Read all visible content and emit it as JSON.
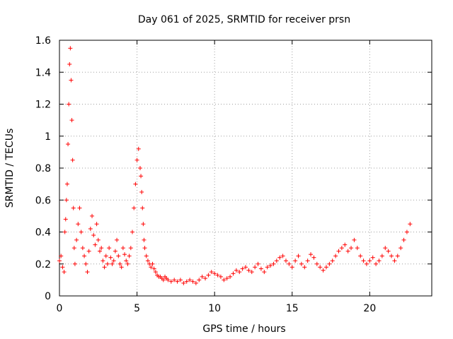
{
  "chart_data": {
    "type": "scatter",
    "title": "Day 061 of 2025, SRMTID for receiver prsn",
    "xlabel": "GPS time / hours",
    "ylabel": "SRMTID / TECUs",
    "xlim": [
      0,
      24
    ],
    "ylim": [
      0,
      1.6
    ],
    "xticks": [
      0,
      5,
      10,
      15,
      20
    ],
    "yticks": [
      0,
      0.2,
      0.4,
      0.6,
      0.8,
      1,
      1.2,
      1.4,
      1.6
    ],
    "xtick_labels": [
      "0",
      "5",
      "10",
      "15",
      "20"
    ],
    "ytick_labels": [
      "0",
      "0.2",
      "0.4",
      "0.6",
      "0.8",
      "1",
      "1.2",
      "1.4",
      "1.6"
    ],
    "grid": true,
    "marker": "+",
    "marker_color": "#ff0000",
    "series": [
      {
        "name": "SRMTID",
        "x": [
          0.0,
          0.1,
          0.2,
          0.3,
          0.35,
          0.4,
          0.45,
          0.5,
          0.55,
          0.6,
          0.65,
          0.7,
          0.75,
          0.8,
          0.85,
          0.9,
          0.95,
          1.0,
          1.1,
          1.2,
          1.3,
          1.4,
          1.5,
          1.6,
          1.7,
          1.8,
          1.9,
          2.0,
          2.1,
          2.2,
          2.3,
          2.4,
          2.5,
          2.6,
          2.7,
          2.8,
          2.9,
          3.0,
          3.1,
          3.2,
          3.3,
          3.4,
          3.5,
          3.6,
          3.7,
          3.8,
          3.9,
          4.0,
          4.1,
          4.2,
          4.3,
          4.4,
          4.5,
          4.6,
          4.7,
          4.8,
          4.9,
          5.0,
          5.1,
          5.2,
          5.25,
          5.3,
          5.35,
          5.4,
          5.45,
          5.5,
          5.6,
          5.7,
          5.8,
          5.9,
          6.0,
          6.1,
          6.2,
          6.3,
          6.4,
          6.5,
          6.6,
          6.7,
          6.8,
          6.9,
          7.0,
          7.2,
          7.4,
          7.6,
          7.8,
          8.0,
          8.2,
          8.4,
          8.6,
          8.8,
          9.0,
          9.2,
          9.4,
          9.6,
          9.8,
          10.0,
          10.2,
          10.4,
          10.6,
          10.8,
          11.0,
          11.2,
          11.4,
          11.6,
          11.8,
          12.0,
          12.2,
          12.4,
          12.6,
          12.8,
          13.0,
          13.2,
          13.4,
          13.6,
          13.8,
          14.0,
          14.2,
          14.4,
          14.6,
          14.8,
          15.0,
          15.2,
          15.4,
          15.6,
          15.8,
          16.0,
          16.2,
          16.4,
          16.6,
          16.8,
          17.0,
          17.2,
          17.4,
          17.6,
          17.8,
          18.0,
          18.2,
          18.4,
          18.6,
          18.8,
          19.0,
          19.2,
          19.4,
          19.6,
          19.8,
          20.0,
          20.2,
          20.4,
          20.6,
          20.8,
          21.0,
          21.2,
          21.4,
          21.6,
          21.8,
          22.0,
          22.2,
          22.4,
          22.6
        ],
        "y": [
          0.22,
          0.25,
          0.18,
          0.15,
          0.4,
          0.48,
          0.6,
          0.7,
          0.95,
          1.2,
          1.45,
          1.55,
          1.35,
          1.1,
          0.85,
          0.55,
          0.3,
          0.2,
          0.35,
          0.45,
          0.55,
          0.4,
          0.3,
          0.25,
          0.2,
          0.15,
          0.28,
          0.42,
          0.5,
          0.38,
          0.32,
          0.45,
          0.35,
          0.28,
          0.3,
          0.22,
          0.18,
          0.25,
          0.2,
          0.3,
          0.24,
          0.2,
          0.22,
          0.28,
          0.35,
          0.25,
          0.2,
          0.18,
          0.3,
          0.26,
          0.22,
          0.2,
          0.25,
          0.3,
          0.4,
          0.55,
          0.7,
          0.85,
          0.92,
          0.8,
          0.75,
          0.65,
          0.55,
          0.45,
          0.35,
          0.3,
          0.25,
          0.22,
          0.2,
          0.18,
          0.2,
          0.17,
          0.15,
          0.13,
          0.12,
          0.12,
          0.11,
          0.1,
          0.12,
          0.11,
          0.1,
          0.09,
          0.1,
          0.09,
          0.1,
          0.08,
          0.09,
          0.1,
          0.09,
          0.08,
          0.1,
          0.12,
          0.11,
          0.13,
          0.15,
          0.14,
          0.13,
          0.12,
          0.1,
          0.11,
          0.12,
          0.14,
          0.16,
          0.15,
          0.17,
          0.18,
          0.16,
          0.15,
          0.18,
          0.2,
          0.17,
          0.15,
          0.18,
          0.19,
          0.2,
          0.22,
          0.24,
          0.25,
          0.22,
          0.2,
          0.18,
          0.22,
          0.25,
          0.2,
          0.18,
          0.22,
          0.26,
          0.24,
          0.2,
          0.18,
          0.16,
          0.18,
          0.2,
          0.22,
          0.25,
          0.28,
          0.3,
          0.32,
          0.28,
          0.3,
          0.35,
          0.3,
          0.25,
          0.22,
          0.2,
          0.22,
          0.24,
          0.2,
          0.22,
          0.25,
          0.3,
          0.28,
          0.25,
          0.22,
          0.25,
          0.3,
          0.35,
          0.4,
          0.45
        ]
      }
    ]
  }
}
